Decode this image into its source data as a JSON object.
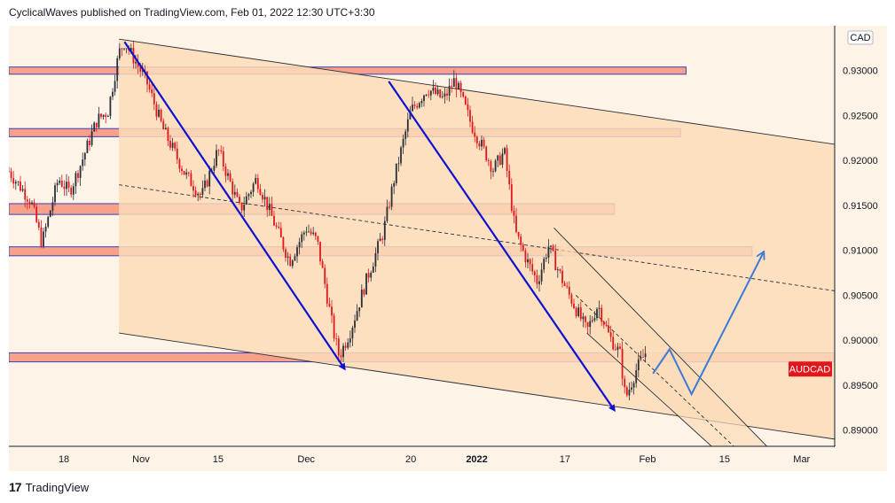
{
  "header": {
    "text": "CyclicalWaves published on TradingView.com, Feb 01, 2022 12:30 UTC+3:30"
  },
  "footer": {
    "brand": "TradingView",
    "logo": "17"
  },
  "currency_badge": "CAD",
  "price_tag": {
    "label": "AUDCAD",
    "color": "#e3161b"
  },
  "colors": {
    "up": "#2a2e39",
    "down": "#e3161b",
    "zone_fill": "#f7a08a",
    "zone_border": "#3a3fbf",
    "wave_arrow": "#1010d0",
    "projection": "#3c78d8",
    "channel_fill": "#fbdcb8",
    "page_bg": "#fdf3e6"
  },
  "chart_data": {
    "type": "candlestick",
    "symbol": "AUDCAD",
    "y_range": [
      0.8882,
      0.935
    ],
    "x_range": [
      "2021-10-08",
      "2022-03-07"
    ],
    "x_tick_labels": [
      {
        "label": "18",
        "date": "2021-10-18"
      },
      {
        "label": "Nov",
        "date": "2021-11-01"
      },
      {
        "label": "15",
        "date": "2021-11-15"
      },
      {
        "label": "Dec",
        "date": "2021-12-01"
      },
      {
        "label": "20",
        "date": "2021-12-20"
      },
      {
        "label": "2022",
        "date": "2022-01-01"
      },
      {
        "label": "17",
        "date": "2022-01-17"
      },
      {
        "label": "Feb",
        "date": "2022-02-01"
      },
      {
        "label": "15",
        "date": "2022-02-15"
      },
      {
        "label": "Mar",
        "date": "2022-03-01"
      }
    ],
    "y_tick_labels": [
      "0.93000",
      "0.92500",
      "0.92000",
      "0.91500",
      "0.91000",
      "0.90500",
      "0.90000",
      "0.89500",
      "0.89000"
    ],
    "y_tick_values": [
      0.93,
      0.925,
      0.92,
      0.915,
      0.91,
      0.905,
      0.9,
      0.895,
      0.89
    ],
    "price_path": [
      [
        "2021-10-08",
        0.9188
      ],
      [
        "2021-10-12",
        0.9155
      ],
      [
        "2021-10-14",
        0.9108
      ],
      [
        "2021-10-17",
        0.918
      ],
      [
        "2021-10-19",
        0.9165
      ],
      [
        "2021-10-21",
        0.9195
      ],
      [
        "2021-10-24",
        0.9245
      ],
      [
        "2021-10-26",
        0.9255
      ],
      [
        "2021-10-28",
        0.932
      ],
      [
        "2021-10-29",
        0.9332
      ],
      [
        "2021-11-02",
        0.9288
      ],
      [
        "2021-11-05",
        0.9235
      ],
      [
        "2021-11-09",
        0.9185
      ],
      [
        "2021-11-12",
        0.916
      ],
      [
        "2021-11-15",
        0.9212
      ],
      [
        "2021-11-19",
        0.9145
      ],
      [
        "2021-11-22",
        0.918
      ],
      [
        "2021-11-26",
        0.9118
      ],
      [
        "2021-11-28",
        0.9088
      ],
      [
        "2021-12-01",
        0.9125
      ],
      [
        "2021-12-03",
        0.911
      ],
      [
        "2021-12-06",
        0.9008
      ],
      [
        "2021-12-07",
        0.8982
      ],
      [
        "2021-12-09",
        0.901
      ],
      [
        "2021-12-12",
        0.9068
      ],
      [
        "2021-12-15",
        0.912
      ],
      [
        "2021-12-17",
        0.918
      ],
      [
        "2021-12-20",
        0.9255
      ],
      [
        "2021-12-23",
        0.928
      ],
      [
        "2021-12-26",
        0.9268
      ],
      [
        "2021-12-28",
        0.929
      ],
      [
        "2021-12-31",
        0.924
      ],
      [
        "2022-01-04",
        0.919
      ],
      [
        "2022-01-06",
        0.921
      ],
      [
        "2022-01-08",
        0.912
      ],
      [
        "2022-01-10",
        0.909
      ],
      [
        "2022-01-12",
        0.9065
      ],
      [
        "2022-01-14",
        0.9105
      ],
      [
        "2022-01-17",
        0.906
      ],
      [
        "2022-01-19",
        0.9035
      ],
      [
        "2022-01-21",
        0.901
      ],
      [
        "2022-01-23",
        0.904
      ],
      [
        "2022-01-25",
        0.9005
      ],
      [
        "2022-01-27",
        0.8985
      ],
      [
        "2022-01-28",
        0.8935
      ],
      [
        "2022-01-30",
        0.8968
      ],
      [
        "2022-02-01",
        0.899
      ]
    ],
    "horizontal_zones": [
      {
        "top": 0.9304,
        "bottom": 0.9296,
        "start": "2021-10-08",
        "end": "2022-02-08"
      },
      {
        "top": 0.92355,
        "bottom": 0.92265,
        "start": "2021-10-08",
        "end": "2022-02-07"
      },
      {
        "top": 0.9152,
        "bottom": 0.914,
        "start": "2021-10-08",
        "end": "2022-01-26"
      },
      {
        "top": 0.9104,
        "bottom": 0.9094,
        "start": "2021-10-08",
        "end": "2022-02-20"
      },
      {
        "top": 0.8986,
        "bottom": 0.8976,
        "start": "2021-10-08",
        "end": "2022-03-07"
      }
    ],
    "big_channel": {
      "upper": [
        [
          "2021-10-28",
          0.9335
        ],
        [
          "2022-03-07",
          0.9218
        ]
      ],
      "lower": [
        [
          "2021-10-28",
          0.9008
        ],
        [
          "2022-03-07",
          0.889
        ]
      ],
      "mid": [
        [
          "2021-10-28",
          0.9173
        ],
        [
          "2022-03-07",
          0.9055
        ]
      ]
    },
    "small_channel": {
      "upper": [
        [
          "2022-01-15",
          0.9125
        ],
        [
          "2022-02-23",
          0.888
        ]
      ],
      "lower": [
        [
          "2022-01-21",
          0.9008
        ],
        [
          "2022-02-13",
          0.888
        ]
      ],
      "mid": [
        [
          "2022-01-19",
          0.905
        ],
        [
          "2022-02-17",
          0.888
        ]
      ]
    },
    "wave_arrows": [
      [
        [
          "2021-10-29",
          0.9332
        ],
        [
          "2021-12-08",
          0.8968
        ]
      ],
      [
        [
          "2021-12-16",
          0.9288
        ],
        [
          "2022-01-26",
          0.8922
        ]
      ]
    ],
    "projection": [
      [
        "2022-02-02",
        0.8963
      ],
      [
        "2022-02-05",
        0.899
      ],
      [
        "2022-02-09",
        0.894
      ],
      [
        "2022-02-22",
        0.9097
      ]
    ],
    "last_price": 0.8968
  }
}
